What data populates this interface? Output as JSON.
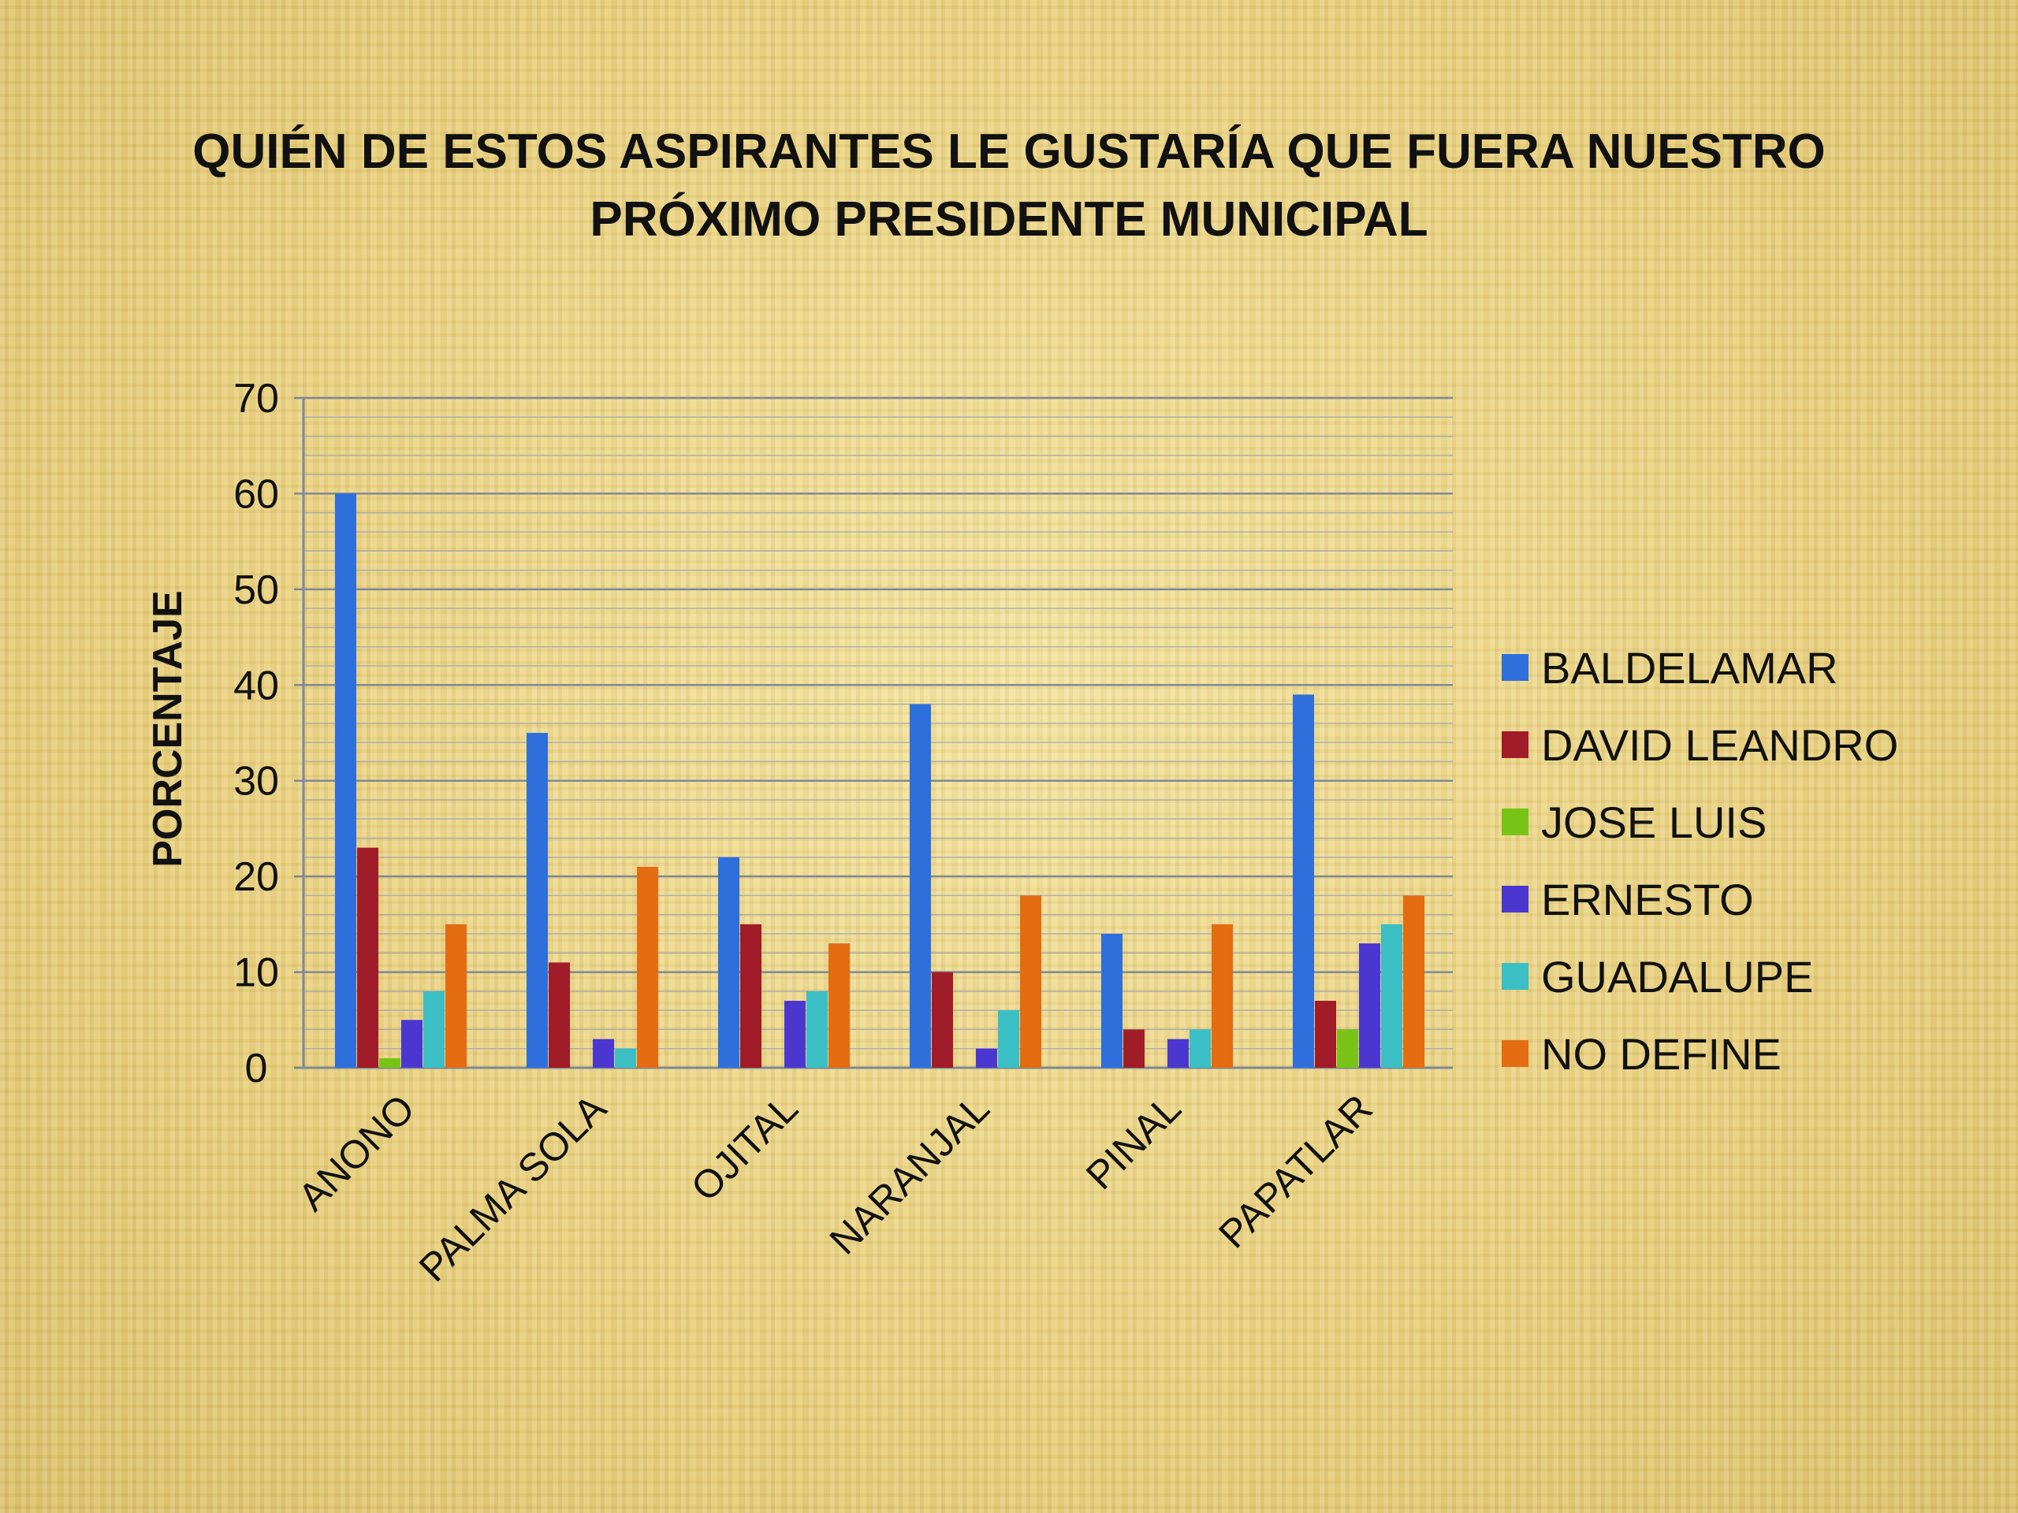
{
  "title": "QUIÉN DE ESTOS ASPIRANTES LE GUSTARÍA QUE FUERA NUESTRO PRÓXIMO PRESIDENTE MUNICIPAL",
  "chart_data": {
    "type": "bar",
    "title": "QUIÉN DE ESTOS ASPIRANTES LE GUSTARÍA QUE FUERA NUESTRO PRÓXIMO PRESIDENTE MUNICIPAL",
    "xlabel": "",
    "ylabel": "PORCENTAJE",
    "ylim": [
      0,
      70
    ],
    "yticks": [
      0,
      10,
      20,
      30,
      40,
      50,
      60,
      70
    ],
    "grid": true,
    "legend_position": "right",
    "categories": [
      "ANONO",
      "PALMA SOLA",
      "OJITAL",
      "NARANJAL",
      "PINAL",
      "PAPATLAR"
    ],
    "series": [
      {
        "name": "BALDELAMAR",
        "color": "#2e6fdc",
        "values": [
          60,
          35,
          22,
          38,
          14,
          39
        ]
      },
      {
        "name": "DAVID LEANDRO",
        "color": "#a01c28",
        "values": [
          23,
          11,
          15,
          10,
          4,
          7
        ]
      },
      {
        "name": "JOSE LUIS",
        "color": "#77c417",
        "values": [
          1,
          0,
          0,
          0,
          0,
          4
        ]
      },
      {
        "name": "ERNESTO",
        "color": "#4b37d0",
        "values": [
          5,
          3,
          7,
          2,
          3,
          13
        ]
      },
      {
        "name": "GUADALUPE",
        "color": "#3bbfc4",
        "values": [
          8,
          2,
          8,
          6,
          4,
          15
        ]
      },
      {
        "name": "NO DEFINE",
        "color": "#e46c12",
        "values": [
          15,
          21,
          13,
          18,
          15,
          18
        ]
      }
    ]
  }
}
